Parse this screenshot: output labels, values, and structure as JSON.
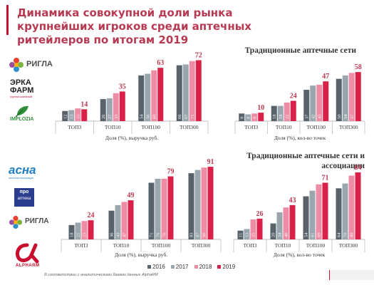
{
  "title": "Динамика совокупной доли рынка крупнейших игроков среди аптечных ритейлеров по итогам 2019",
  "sections": {
    "top": "Традиционные аптечные сети",
    "bottom": "Традиционные аптечные сети и ассоциации"
  },
  "logos": {
    "rigla": "РИГЛА",
    "erkafarm_line1": "ЭРКА",
    "erkafarm_line2": "ФАРМ",
    "erkafarm_sub": "группа компаний",
    "implozia": "IMPLOZIA",
    "asna": "асна",
    "asna_sub": "аптечная ассоциация",
    "pro_apteka_line1": "про",
    "pro_apteka_line2": "аптека",
    "rigla2": "РИГЛА",
    "alpharm": "ALPHARM"
  },
  "colors": {
    "2016": "#57626b",
    "2017": "#9aa6ae",
    "2018": "#ef8ca5",
    "2019": "#d92048",
    "title": "#b83a52",
    "value_label_last": "#b83a52"
  },
  "legend": [
    "2016",
    "2017",
    "2018",
    "2019"
  ],
  "footnote": "В соответствии с аналитическими базами данных AlphaRM",
  "chart_data": [
    {
      "type": "bar",
      "categories": [
        "ТОП3",
        "ТОП10",
        "ТОП100",
        "ТОП300"
      ],
      "series": [
        {
          "name": "2016",
          "values": [
            12,
            26,
            54,
            66
          ]
        },
        {
          "name": "2017",
          "values": [
            13,
            27,
            56,
            67
          ]
        },
        {
          "name": "2018",
          "values": [
            15,
            33,
            60,
            71
          ]
        },
        {
          "name": "2019",
          "values": [
            14,
            35,
            63,
            72
          ]
        }
      ],
      "xlabel": "Доля (%), выручка руб.",
      "ylim": [
        0,
        80
      ]
    },
    {
      "type": "bar",
      "categories": [
        "ТОП3",
        "ТОП10",
        "ТОП100",
        "ТОП300"
      ],
      "series": [
        {
          "name": "2016",
          "values": [
            9,
            18,
            37,
            50
          ]
        },
        {
          "name": "2017",
          "values": [
            8,
            18,
            42,
            54
          ]
        },
        {
          "name": "2018",
          "values": [
            9,
            22,
            43,
            57
          ]
        },
        {
          "name": "2019",
          "values": [
            10,
            24,
            47,
            58
          ]
        }
      ],
      "xlabel": "Доля (%), кол-во точек",
      "ylim": [
        0,
        80
      ]
    },
    {
      "type": "bar",
      "categories": [
        "ТОП3",
        "ТОП10",
        "ТОП100",
        "ТОП300"
      ],
      "series": [
        {
          "name": "2016",
          "values": [
            18,
            36,
            71,
            83
          ]
        },
        {
          "name": "2017",
          "values": [
            21,
            43,
            76,
            87
          ]
        },
        {
          "name": "2018",
          "values": [
            23,
            47,
            76,
            90
          ]
        },
        {
          "name": "2019",
          "values": [
            24,
            49,
            79,
            91
          ]
        }
      ],
      "xlabel": "Доля (%), выручка руб.",
      "ylim": [
        0,
        100
      ]
    },
    {
      "type": "bar",
      "categories": [
        "ТОП3",
        "ТОП10",
        "ТОП100",
        "ТОП300"
      ],
      "series": [
        {
          "name": "2016",
          "values": [
            11,
            20,
            54,
            64
          ]
        },
        {
          "name": "2017",
          "values": [
            13,
            34,
            61,
            70
          ]
        },
        {
          "name": "2018",
          "values": [
            25,
            40,
            69,
            80
          ]
        },
        {
          "name": "2019",
          "values": [
            26,
            43,
            71,
            84
          ]
        }
      ],
      "xlabel": "Доля (%), кол-во точек",
      "ylim": [
        0,
        100
      ]
    }
  ]
}
